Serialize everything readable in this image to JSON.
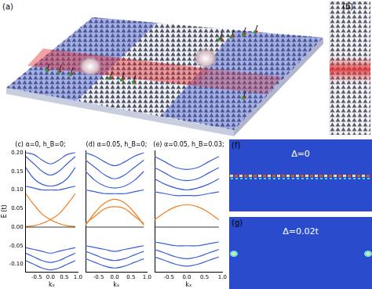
{
  "illustrations": {
    "a": {
      "label": "(a)"
    },
    "b": {
      "label": "(b)"
    },
    "f": {
      "label": "(f)",
      "text": "Δ=0"
    },
    "g": {
      "label": "(g)",
      "text": "Δ=0.02t"
    }
  },
  "chart_data": [
    {
      "type": "line",
      "title": "(c) α=0, h_B=0;",
      "xlabel": "kₓ",
      "ylabel": "E (t)",
      "tick_labels": true,
      "grid": false,
      "x": [
        -0.9,
        -0.6,
        -0.3,
        0,
        0.3,
        0.6,
        0.9
      ],
      "xlim": [
        -0.9,
        1.0
      ],
      "xticks": [
        -0.5,
        {
          "value": 0,
          "label": "0.0"
        },
        0.5,
        {
          "value": 1,
          "label": "1.0"
        }
      ],
      "ylim": [
        -0.12,
        0.205
      ],
      "yticks": [
        {
          "value": -0.1,
          "label": "-0.10"
        },
        {
          "value": -0.05,
          "label": "-0.05"
        },
        {
          "value": 0,
          "label": "0.00"
        },
        {
          "value": 0.05,
          "label": "0.05"
        },
        {
          "value": 0.1,
          "label": "0.10"
        },
        {
          "value": 0.15,
          "label": "0.15"
        },
        {
          "value": 0.2,
          "label": "0.20"
        }
      ],
      "series": [
        {
          "color": "#000000",
          "values": [
            0,
            0,
            0,
            0,
            0,
            0,
            0
          ]
        },
        {
          "color": "#3b5fd9",
          "values": [
            0.11,
            0.105,
            0.1,
            0.1,
            0.1,
            0.105,
            0.11
          ]
        },
        {
          "color": "#3b5fd9",
          "values": [
            0.16,
            0.13,
            0.115,
            0.11,
            0.115,
            0.13,
            0.16
          ]
        },
        {
          "color": "#3b5fd9",
          "values": [
            0.19,
            0.17,
            0.15,
            0.14,
            0.15,
            0.17,
            0.19
          ]
        },
        {
          "color": "#3b5fd9",
          "values": [
            0.2,
            0.195,
            0.18,
            0.17,
            0.18,
            0.195,
            0.2
          ]
        },
        {
          "color": "#3b5fd9",
          "values": [
            -0.055,
            -0.06,
            -0.065,
            -0.07,
            -0.065,
            -0.06,
            -0.055
          ]
        },
        {
          "color": "#3b5fd9",
          "values": [
            -0.07,
            -0.08,
            -0.09,
            -0.095,
            -0.09,
            -0.08,
            -0.07
          ]
        },
        {
          "color": "#3b5fd9",
          "values": [
            -0.09,
            -0.1,
            -0.11,
            -0.115,
            -0.11,
            -0.1,
            -0.09
          ]
        },
        {
          "color": "#f07d1e",
          "values": [
            0.09,
            0.06,
            0.035,
            0.02,
            0.01,
            0.004,
            0.002
          ]
        },
        {
          "color": "#f07d1e",
          "values": [
            0.002,
            0.004,
            0.01,
            0.02,
            0.035,
            0.06,
            0.09
          ]
        }
      ]
    },
    {
      "type": "line",
      "title": "(d) α=0.05, h_B=0;",
      "xlabel": "kₓ",
      "tick_labels": "x",
      "grid": false,
      "x": [
        -0.9,
        -0.6,
        -0.3,
        0,
        0.3,
        0.6,
        0.9
      ],
      "xlim": [
        -0.9,
        1.0
      ],
      "xticks": [
        -0.5,
        {
          "value": 0,
          "label": "0.0"
        },
        0.5,
        {
          "value": 1,
          "label": "1.0"
        }
      ],
      "ylim": [
        -0.12,
        0.205
      ],
      "yticks": [
        -0.1,
        -0.05,
        0,
        0.05,
        0.1,
        0.15,
        0.2
      ],
      "series": [
        {
          "color": "#000000",
          "values": [
            0,
            0,
            0,
            0,
            0,
            0,
            0
          ]
        },
        {
          "color": "#3b5fd9",
          "values": [
            0.1,
            0.095,
            0.09,
            0.09,
            0.09,
            0.095,
            0.1
          ]
        },
        {
          "color": "#3b5fd9",
          "values": [
            0.15,
            0.125,
            0.11,
            0.105,
            0.11,
            0.125,
            0.15
          ]
        },
        {
          "color": "#3b5fd9",
          "values": [
            0.18,
            0.16,
            0.14,
            0.13,
            0.14,
            0.16,
            0.18
          ]
        },
        {
          "color": "#3b5fd9",
          "values": [
            0.2,
            0.19,
            0.175,
            0.165,
            0.175,
            0.19,
            0.2
          ]
        },
        {
          "color": "#3b5fd9",
          "values": [
            -0.05,
            -0.055,
            -0.06,
            -0.065,
            -0.06,
            -0.055,
            -0.05
          ]
        },
        {
          "color": "#3b5fd9",
          "values": [
            -0.065,
            -0.075,
            -0.085,
            -0.09,
            -0.085,
            -0.075,
            -0.065
          ]
        },
        {
          "color": "#3b5fd9",
          "values": [
            -0.085,
            -0.095,
            -0.105,
            -0.11,
            -0.105,
            -0.095,
            -0.085
          ]
        },
        {
          "color": "#f07d1e",
          "values": [
            0.005,
            0.04,
            0.065,
            0.075,
            0.065,
            0.04,
            0.005
          ]
        },
        {
          "color": "#f07d1e",
          "values": [
            0.01,
            0.03,
            0.05,
            0.055,
            0.05,
            0.03,
            0.01
          ]
        }
      ]
    },
    {
      "type": "line",
      "title": "(e) α=0.05, h_B=0.03;",
      "xlabel": "kₓ",
      "tick_labels": "x",
      "grid": false,
      "x": [
        -0.9,
        -0.6,
        -0.3,
        0,
        0.3,
        0.6,
        0.9
      ],
      "xlim": [
        -0.9,
        1.0
      ],
      "xticks": [
        -0.5,
        {
          "value": 0,
          "label": "0.0"
        },
        0.5,
        {
          "value": 1,
          "label": "1.0"
        }
      ],
      "ylim": [
        -0.12,
        0.205
      ],
      "yticks": [
        -0.1,
        -0.05,
        0,
        0.05,
        0.1,
        0.15,
        0.2
      ],
      "series": [
        {
          "color": "#000000",
          "values": [
            0,
            0,
            0,
            0,
            0,
            0,
            0
          ]
        },
        {
          "color": "#3b5fd9",
          "values": [
            0.095,
            0.09,
            0.085,
            0.085,
            0.085,
            0.09,
            0.095
          ]
        },
        {
          "color": "#3b5fd9",
          "values": [
            0.13,
            0.115,
            0.105,
            0.1,
            0.105,
            0.115,
            0.13
          ]
        },
        {
          "color": "#3b5fd9",
          "values": [
            0.16,
            0.145,
            0.13,
            0.125,
            0.13,
            0.145,
            0.16
          ]
        },
        {
          "color": "#3b5fd9",
          "values": [
            0.19,
            0.175,
            0.16,
            0.155,
            0.16,
            0.175,
            0.19
          ]
        },
        {
          "color": "#3b5fd9",
          "values": [
            -0.04,
            -0.045,
            -0.05,
            -0.05,
            -0.05,
            -0.045,
            -0.04
          ]
        },
        {
          "color": "#3b5fd9",
          "values": [
            -0.06,
            -0.07,
            -0.08,
            -0.085,
            -0.08,
            -0.07,
            -0.06
          ]
        },
        {
          "color": "#3b5fd9",
          "values": [
            -0.08,
            -0.09,
            -0.1,
            -0.105,
            -0.1,
            -0.09,
            -0.08
          ]
        },
        {
          "color": "#f07d1e",
          "values": [
            0.02,
            0.04,
            0.055,
            0.06,
            0.055,
            0.04,
            0.02
          ]
        }
      ]
    }
  ]
}
